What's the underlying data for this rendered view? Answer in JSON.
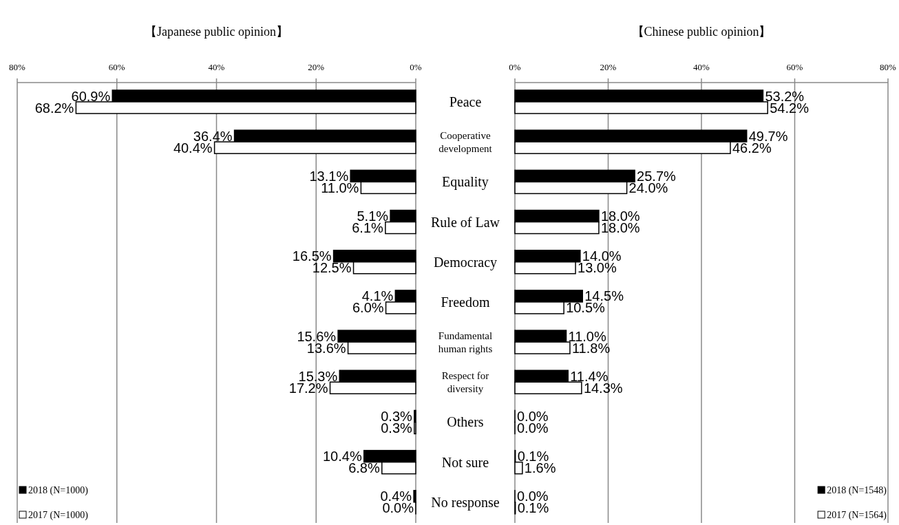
{
  "chart_data": [
    {
      "type": "bar",
      "orientation": "horizontal",
      "title": "【Japanese public opinion】",
      "categories": [
        "Peace",
        "Cooperative development",
        "Equality",
        "Rule of Law",
        "Democracy",
        "Freedom",
        "Fundamental human rights",
        "Respect for diversity",
        "Others",
        "Not sure",
        "No response"
      ],
      "xlim": [
        80,
        0
      ],
      "xticks": [
        {
          "value": 80,
          "label": "80%"
        },
        {
          "value": 60,
          "label": "60%"
        },
        {
          "value": 40,
          "label": "40%"
        },
        {
          "value": 20,
          "label": "20%"
        },
        {
          "value": 0,
          "label": "0%"
        }
      ],
      "grid": "x",
      "legend": "bottom left",
      "tick_labels": "x",
      "series": [
        {
          "name": "2018 (N=1000)",
          "color": "#000000",
          "values": [
            60.9,
            36.4,
            13.1,
            5.1,
            16.5,
            4.1,
            15.6,
            15.3,
            0.3,
            10.4,
            0.4
          ],
          "value_labels": [
            "60.9%",
            "36.4%",
            "13.1%",
            "5.1%",
            "16.5%",
            "4.1%",
            "15.6%",
            "15.3%",
            "0.3%",
            "10.4%",
            "0.4%"
          ]
        },
        {
          "name": "2017 (N=1000)",
          "color": "#ffffff",
          "values": [
            68.2,
            40.4,
            11.0,
            6.1,
            12.5,
            6.0,
            13.6,
            17.2,
            0.3,
            6.8,
            0.0
          ],
          "value_labels": [
            "68.2%",
            "40.4%",
            "11.0%",
            "6.1%",
            "12.5%",
            "6.0%",
            "13.6%",
            "17.2%",
            "0.3%",
            "6.8%",
            "0.0%"
          ]
        }
      ]
    },
    {
      "type": "bar",
      "orientation": "horizontal",
      "title": "【Chinese public opinion】",
      "categories": [
        "Peace",
        "Cooperative development",
        "Equality",
        "Rule of Law",
        "Democracy",
        "Freedom",
        "Fundamental human rights",
        "Respect for diversity",
        "Others",
        "Not sure",
        "No response"
      ],
      "xlim": [
        0,
        80
      ],
      "xticks": [
        {
          "value": 0,
          "label": "0%"
        },
        {
          "value": 20,
          "label": "20%"
        },
        {
          "value": 40,
          "label": "40%"
        },
        {
          "value": 60,
          "label": "60%"
        },
        {
          "value": 80,
          "label": "80%"
        }
      ],
      "grid": "x",
      "legend": "bottom right",
      "series": [
        {
          "name": "2018 (N=1548)",
          "color": "#000000",
          "values": [
            53.2,
            49.7,
            25.7,
            18.0,
            14.0,
            14.5,
            11.0,
            11.4,
            0.0,
            0.1,
            0.0
          ],
          "value_labels": [
            "53.2%",
            "49.7%",
            "25.7%",
            "18.0%",
            "14.0%",
            "14.5%",
            "11.0%",
            "11.4%",
            "0.0%",
            "0.1%",
            "0.0%"
          ]
        },
        {
          "name": "2017 (N=1564)",
          "color": "#ffffff",
          "values": [
            54.2,
            46.2,
            24.0,
            18.0,
            13.0,
            10.5,
            11.8,
            14.3,
            0.0,
            1.6,
            0.1
          ],
          "value_labels": [
            "54.2%",
            "46.2%",
            "24.0%",
            "18.0%",
            "13.0%",
            "10.5%",
            "11.8%",
            "14.3%",
            "0.0%",
            "1.6%",
            "0.1%"
          ]
        }
      ]
    }
  ]
}
